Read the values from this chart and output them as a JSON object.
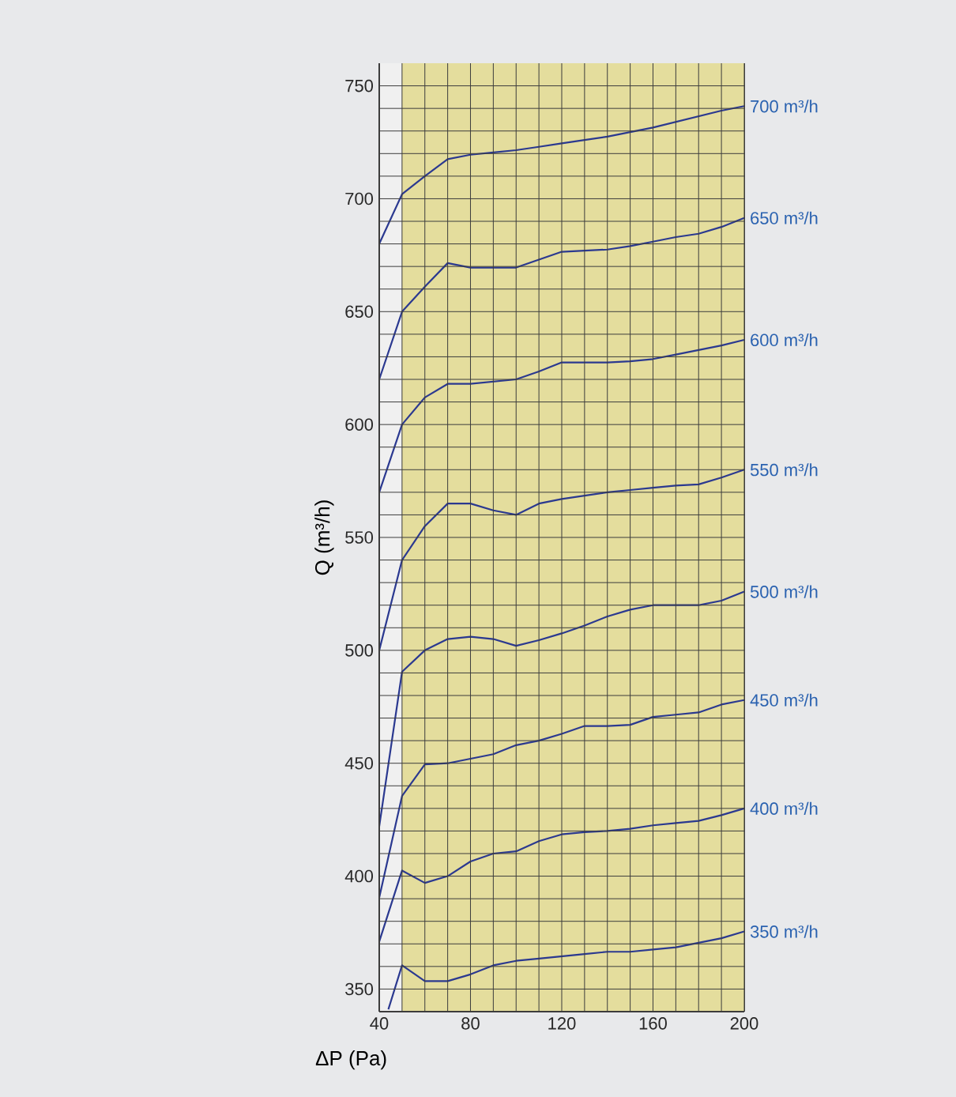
{
  "chart_data": {
    "type": "line",
    "xlabel": "ΔP (Pa)",
    "ylabel": "Q (m³/h)",
    "x": [
      40,
      50,
      60,
      70,
      80,
      90,
      100,
      110,
      120,
      130,
      140,
      150,
      160,
      170,
      180,
      190,
      200
    ],
    "series": [
      {
        "name": "700 m³/h",
        "color": "#2b3990",
        "values": [
          680,
          702,
          710,
          717.5,
          719.5,
          720.5,
          721.5,
          723,
          724.5,
          726,
          727.5,
          729.5,
          731.5,
          734,
          736.5,
          739,
          741
        ]
      },
      {
        "name": "650 m³/h",
        "color": "#2b3990",
        "values": [
          620,
          650,
          661,
          671.5,
          669.5,
          669.5,
          669.5,
          673,
          676.5,
          677,
          677.5,
          679,
          681,
          683,
          684.5,
          687.5,
          691.5
        ]
      },
      {
        "name": "600 m³/h",
        "color": "#2b3990",
        "values": [
          570,
          600,
          612,
          618,
          618,
          619,
          620,
          623.5,
          627.5,
          627.5,
          627.5,
          628,
          629,
          631,
          633,
          635,
          637.5
        ]
      },
      {
        "name": "550 m³/h",
        "color": "#2b3990",
        "values": [
          500,
          540,
          555,
          565,
          565,
          562,
          560,
          565,
          567,
          568.5,
          570,
          571,
          572,
          573,
          573.5,
          576.5,
          580
        ]
      },
      {
        "name": "500 m³/h",
        "color": "#2b3990",
        "values": [
          422,
          490.5,
          500,
          505,
          506,
          505,
          502,
          504.5,
          507.5,
          511,
          515,
          518,
          520,
          520,
          520,
          522,
          526
        ]
      },
      {
        "name": "450 m³/h",
        "color": "#2b3990",
        "values": [
          390.5,
          435.5,
          449.5,
          450,
          452,
          454,
          458,
          460,
          463,
          466.5,
          466.5,
          467,
          470.5,
          471.5,
          472.5,
          476,
          478
        ]
      },
      {
        "name": "400 m³/h",
        "color": "#2b3990",
        "values": [
          371,
          402.5,
          397,
          400,
          406.5,
          410,
          411,
          415.5,
          418.5,
          419.5,
          420,
          421,
          422.5,
          423.5,
          424.5,
          427,
          430
        ]
      },
      {
        "name": "350 m³/h",
        "color": "#2b3990",
        "x": [
          44,
          50,
          60,
          70,
          80,
          90,
          100,
          110,
          120,
          130,
          140,
          150,
          160,
          170,
          180,
          190,
          200
        ],
        "values": [
          341,
          360.5,
          353.5,
          353.5,
          356.5,
          360.5,
          362.5,
          363.5,
          364.5,
          365.5,
          366.5,
          366.5,
          367.5,
          368.5,
          370.5,
          372.5,
          375.5
        ]
      }
    ],
    "xlim": [
      40,
      200
    ],
    "ylim": [
      340,
      760
    ],
    "xticks": [
      40,
      80,
      120,
      160,
      200
    ],
    "yticks": [
      350,
      400,
      450,
      500,
      550,
      600,
      650,
      700,
      750
    ],
    "grid": true,
    "marker": "none",
    "line_style": "solid",
    "legend": false,
    "bands": [
      {
        "axis": "x",
        "from": 50,
        "to": 200,
        "color": "#e4dd9d"
      }
    ]
  }
}
